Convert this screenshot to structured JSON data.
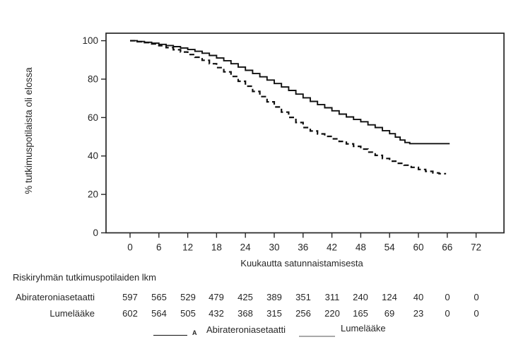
{
  "colors": {
    "background": "#ffffff",
    "text": "#262626",
    "axis": "#262626",
    "curve": "#111111",
    "legend_gray_line": "#a9a9a9"
  },
  "chart_data": {
    "type": "line",
    "subtype": "kaplan-meier-step",
    "title": "",
    "xlabel": "Kuukautta satunnaistamisesta",
    "ylabel": "% tutkimuspotilaista oli elossa",
    "xlim": [
      -5,
      77.8
    ],
    "ylim": [
      0,
      103.9
    ],
    "x_ticks": [
      0,
      6,
      12,
      18,
      24,
      30,
      36,
      42,
      48,
      54,
      60,
      66,
      72
    ],
    "y_ticks": [
      0,
      20,
      40,
      60,
      80,
      100
    ],
    "grid": false,
    "legend_position": "bottom",
    "series": [
      {
        "name": "Abirateroniasetaatti",
        "line_style": "solid",
        "color": "#111111",
        "step": true,
        "points": [
          [
            0,
            100
          ],
          [
            1.5,
            99.6
          ],
          [
            3,
            99.2
          ],
          [
            4.5,
            98.7
          ],
          [
            6,
            98.1
          ],
          [
            7.5,
            97.5
          ],
          [
            9,
            96.9
          ],
          [
            10.5,
            96.2
          ],
          [
            12,
            95.4
          ],
          [
            13.5,
            94.5
          ],
          [
            15,
            93.5
          ],
          [
            16.5,
            92.3
          ],
          [
            18,
            91
          ],
          [
            19.5,
            89.6
          ],
          [
            21,
            88
          ],
          [
            22.5,
            86.3
          ],
          [
            24,
            84.6
          ],
          [
            25.5,
            82.9
          ],
          [
            27,
            81.2
          ],
          [
            28.5,
            79.5
          ],
          [
            30,
            77.7
          ],
          [
            31.5,
            75.9
          ],
          [
            33,
            74.1
          ],
          [
            34.5,
            72.2
          ],
          [
            36,
            70.3
          ],
          [
            37.5,
            68.4
          ],
          [
            39,
            66.7
          ],
          [
            40.5,
            65.1
          ],
          [
            42,
            63.5
          ],
          [
            43.5,
            61.8
          ],
          [
            45,
            60.3
          ],
          [
            46.5,
            59
          ],
          [
            48,
            57.8
          ],
          [
            49.5,
            56.2
          ],
          [
            51,
            54.8
          ],
          [
            52.5,
            53.2
          ],
          [
            54,
            51.6
          ],
          [
            55.2,
            49.8
          ],
          [
            56.2,
            48.3
          ],
          [
            57.2,
            47
          ],
          [
            58.2,
            46.4
          ],
          [
            66.5,
            46.4
          ]
        ]
      },
      {
        "name": "Lumelääke",
        "line_style": "dashed",
        "color": "#111111",
        "step": true,
        "points": [
          [
            0,
            100
          ],
          [
            1.5,
            99.5
          ],
          [
            3,
            99
          ],
          [
            4.5,
            98.3
          ],
          [
            6,
            97.4
          ],
          [
            7.5,
            96.4
          ],
          [
            9,
            95.3
          ],
          [
            10.5,
            94.1
          ],
          [
            12,
            92.8
          ],
          [
            13.5,
            91.4
          ],
          [
            15,
            89.8
          ],
          [
            16.5,
            88
          ],
          [
            18,
            86
          ],
          [
            19.5,
            83.8
          ],
          [
            21,
            81.4
          ],
          [
            22.5,
            78.9
          ],
          [
            24,
            76.3
          ],
          [
            25.5,
            73.6
          ],
          [
            27,
            70.9
          ],
          [
            28.5,
            68.2
          ],
          [
            30,
            65.5
          ],
          [
            31.5,
            62.8
          ],
          [
            33,
            60.1
          ],
          [
            34.5,
            57.4
          ],
          [
            36,
            54.8
          ],
          [
            37.5,
            53
          ],
          [
            39,
            51.5
          ],
          [
            40.5,
            50.2
          ],
          [
            42,
            48.9
          ],
          [
            43.5,
            47.6
          ],
          [
            45,
            46.3
          ],
          [
            46.5,
            45
          ],
          [
            48,
            43.6
          ],
          [
            49.5,
            42
          ],
          [
            51,
            40.3
          ],
          [
            52.5,
            38.7
          ],
          [
            54,
            37.3
          ],
          [
            55.5,
            36.2
          ],
          [
            57,
            35.2
          ],
          [
            58.5,
            34.1
          ],
          [
            60,
            33
          ],
          [
            61.5,
            32
          ],
          [
            63,
            31.2
          ],
          [
            64.3,
            30.8
          ],
          [
            65.6,
            30.4
          ]
        ]
      }
    ]
  },
  "risk_table": {
    "title": "Riskiryhmän tutkimuspotilaiden lkm",
    "time_points": [
      0,
      6,
      12,
      18,
      24,
      30,
      36,
      42,
      48,
      54,
      60,
      66,
      72
    ],
    "rows": [
      {
        "label": "Abirateroniasetaatti",
        "counts": [
          "597",
          "565",
          "529",
          "479",
          "425",
          "389",
          "351",
          "311",
          "240",
          "124",
          "40",
          "0",
          "0"
        ]
      },
      {
        "label": "Lumelääke",
        "counts": [
          "602",
          "564",
          "505",
          "432",
          "368",
          "315",
          "256",
          "220",
          "165",
          "69",
          "23",
          "0",
          "0"
        ]
      }
    ]
  },
  "legend": {
    "series1_marker": "A",
    "series1_label": "Abirateroniasetaatti",
    "series2_label": "Lumelääke"
  }
}
